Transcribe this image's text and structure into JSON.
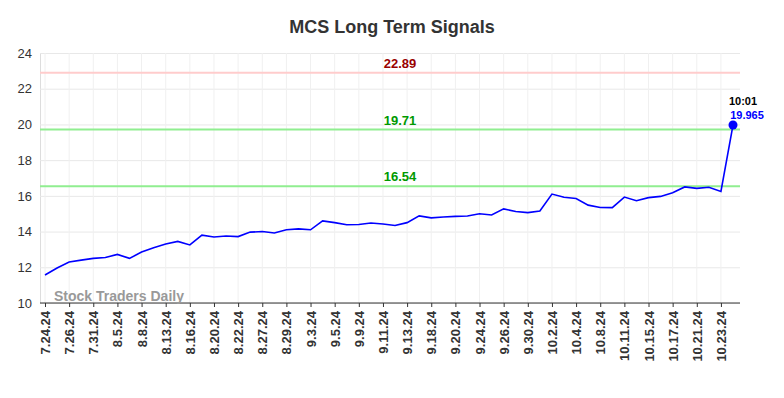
{
  "chart_data": {
    "type": "line",
    "title": "MCS Long Term Signals",
    "categories": [
      "7.24.24",
      null,
      "7.26.24",
      null,
      "7.31.24",
      null,
      "8.5.24",
      null,
      "8.8.24",
      null,
      "8.13.24",
      null,
      "8.16.24",
      null,
      "8.20.24",
      null,
      "8.22.24",
      null,
      "8.27.24",
      null,
      "8.29.24",
      null,
      "9.3.24",
      null,
      "9.5.24",
      null,
      "9.9.24",
      null,
      "9.11.24",
      null,
      "9.13.24",
      null,
      "9.18.24",
      null,
      "9.20.24",
      null,
      "9.24.24",
      null,
      "9.26.24",
      null,
      "9.30.24",
      null,
      "10.2.24",
      null,
      "10.4.24",
      null,
      "10.8.24",
      null,
      "10.11.24",
      null,
      "10.15.24",
      null,
      "10.17.24",
      null,
      "10.21.24",
      null,
      "10.23.24",
      null
    ],
    "series": [
      {
        "color": "#0000ff",
        "values": [
          11.57,
          11.96,
          12.3,
          12.4,
          12.5,
          12.55,
          12.72,
          12.5,
          12.85,
          13.1,
          13.3,
          13.45,
          13.25,
          13.8,
          13.7,
          13.75,
          13.72,
          13.97,
          14.0,
          13.92,
          14.1,
          14.15,
          14.1,
          14.6,
          14.5,
          14.38,
          14.4,
          14.48,
          14.42,
          14.34,
          14.5,
          14.88,
          14.77,
          14.82,
          14.85,
          14.87,
          15.0,
          14.93,
          15.27,
          15.12,
          15.06,
          15.15,
          16.1,
          15.92,
          15.85,
          15.48,
          15.35,
          15.34,
          15.93,
          15.73,
          15.9,
          15.97,
          16.17,
          16.5,
          16.42,
          16.48,
          16.25,
          19.965
        ]
      }
    ],
    "ylim": [
      10,
      24
    ],
    "yticks": [
      10,
      12,
      14,
      16,
      18,
      20,
      22,
      24
    ],
    "grid": true,
    "reference_lines": [
      {
        "value": 22.89,
        "color": "#ffcccc"
      },
      {
        "value": 19.71,
        "color": "#90ee90"
      },
      {
        "value": 16.54,
        "color": "#90ee90"
      }
    ],
    "marker_label": "10:01",
    "watermark": "Stock Traders Daily"
  }
}
